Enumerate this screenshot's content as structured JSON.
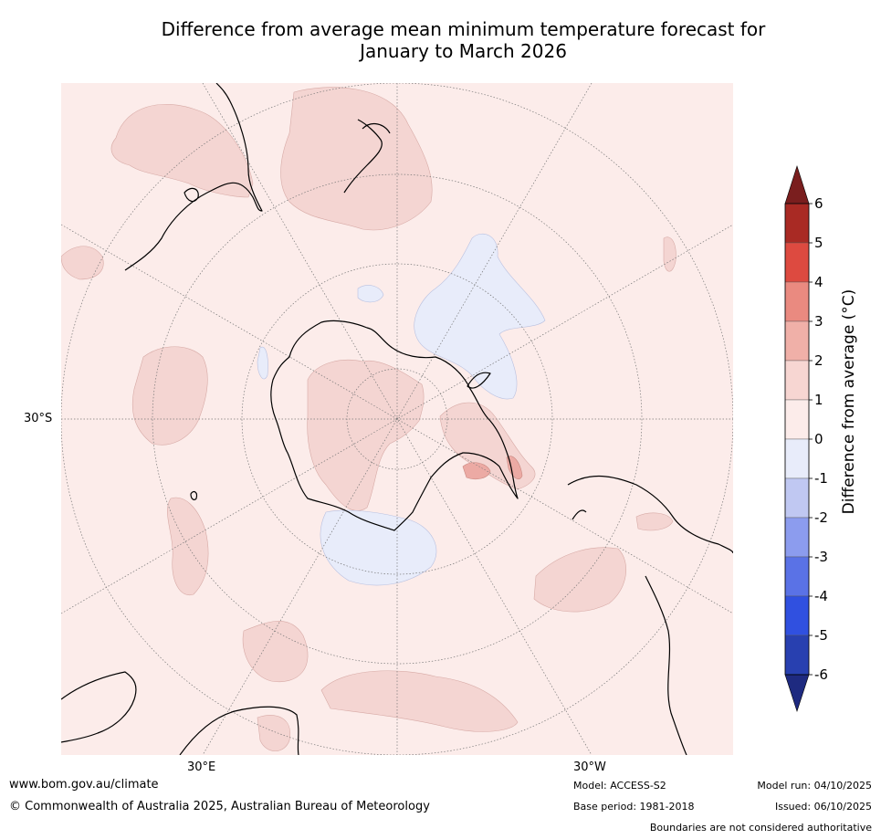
{
  "title": {
    "line1": "Difference from average mean minimum temperature forecast for",
    "line2": "January to March 2026"
  },
  "map": {
    "projection": "south-polar-stereographic",
    "lat_label": "30°S",
    "lon_label_left": "30°E",
    "lon_label_right": "30°W",
    "background_color": "#fcecea",
    "land_outline_color": "#000000",
    "graticule_color": "#777777"
  },
  "colorbar": {
    "label": "Difference from average (°C)",
    "ticks": [
      "6",
      "5",
      "4",
      "3",
      "2",
      "1",
      "0",
      "-1",
      "-2",
      "-3",
      "-4",
      "-5",
      "-6"
    ],
    "colors_top_to_bottom": [
      "#7a1e1e",
      "#a92a24",
      "#dd4a40",
      "#ea8a80",
      "#f0b0a8",
      "#f7d6d2",
      "#fcecea",
      "#e8ecfa",
      "#c0c8f2",
      "#8c9cee",
      "#5a72e6",
      "#3050e0",
      "#2840b0",
      "#1e2a80"
    ]
  },
  "footer": {
    "website": "www.bom.gov.au/climate",
    "copyright": "© Commonwealth of Australia 2025, Australian Bureau of Meteorology",
    "model": "Model: ACCESS-S2",
    "base_period": "Base period: 1981-2018",
    "model_run": "Model run: 04/10/2025",
    "issued": "Issued: 06/10/2025",
    "disclaimer": "Boundaries are not considered authoritative"
  }
}
